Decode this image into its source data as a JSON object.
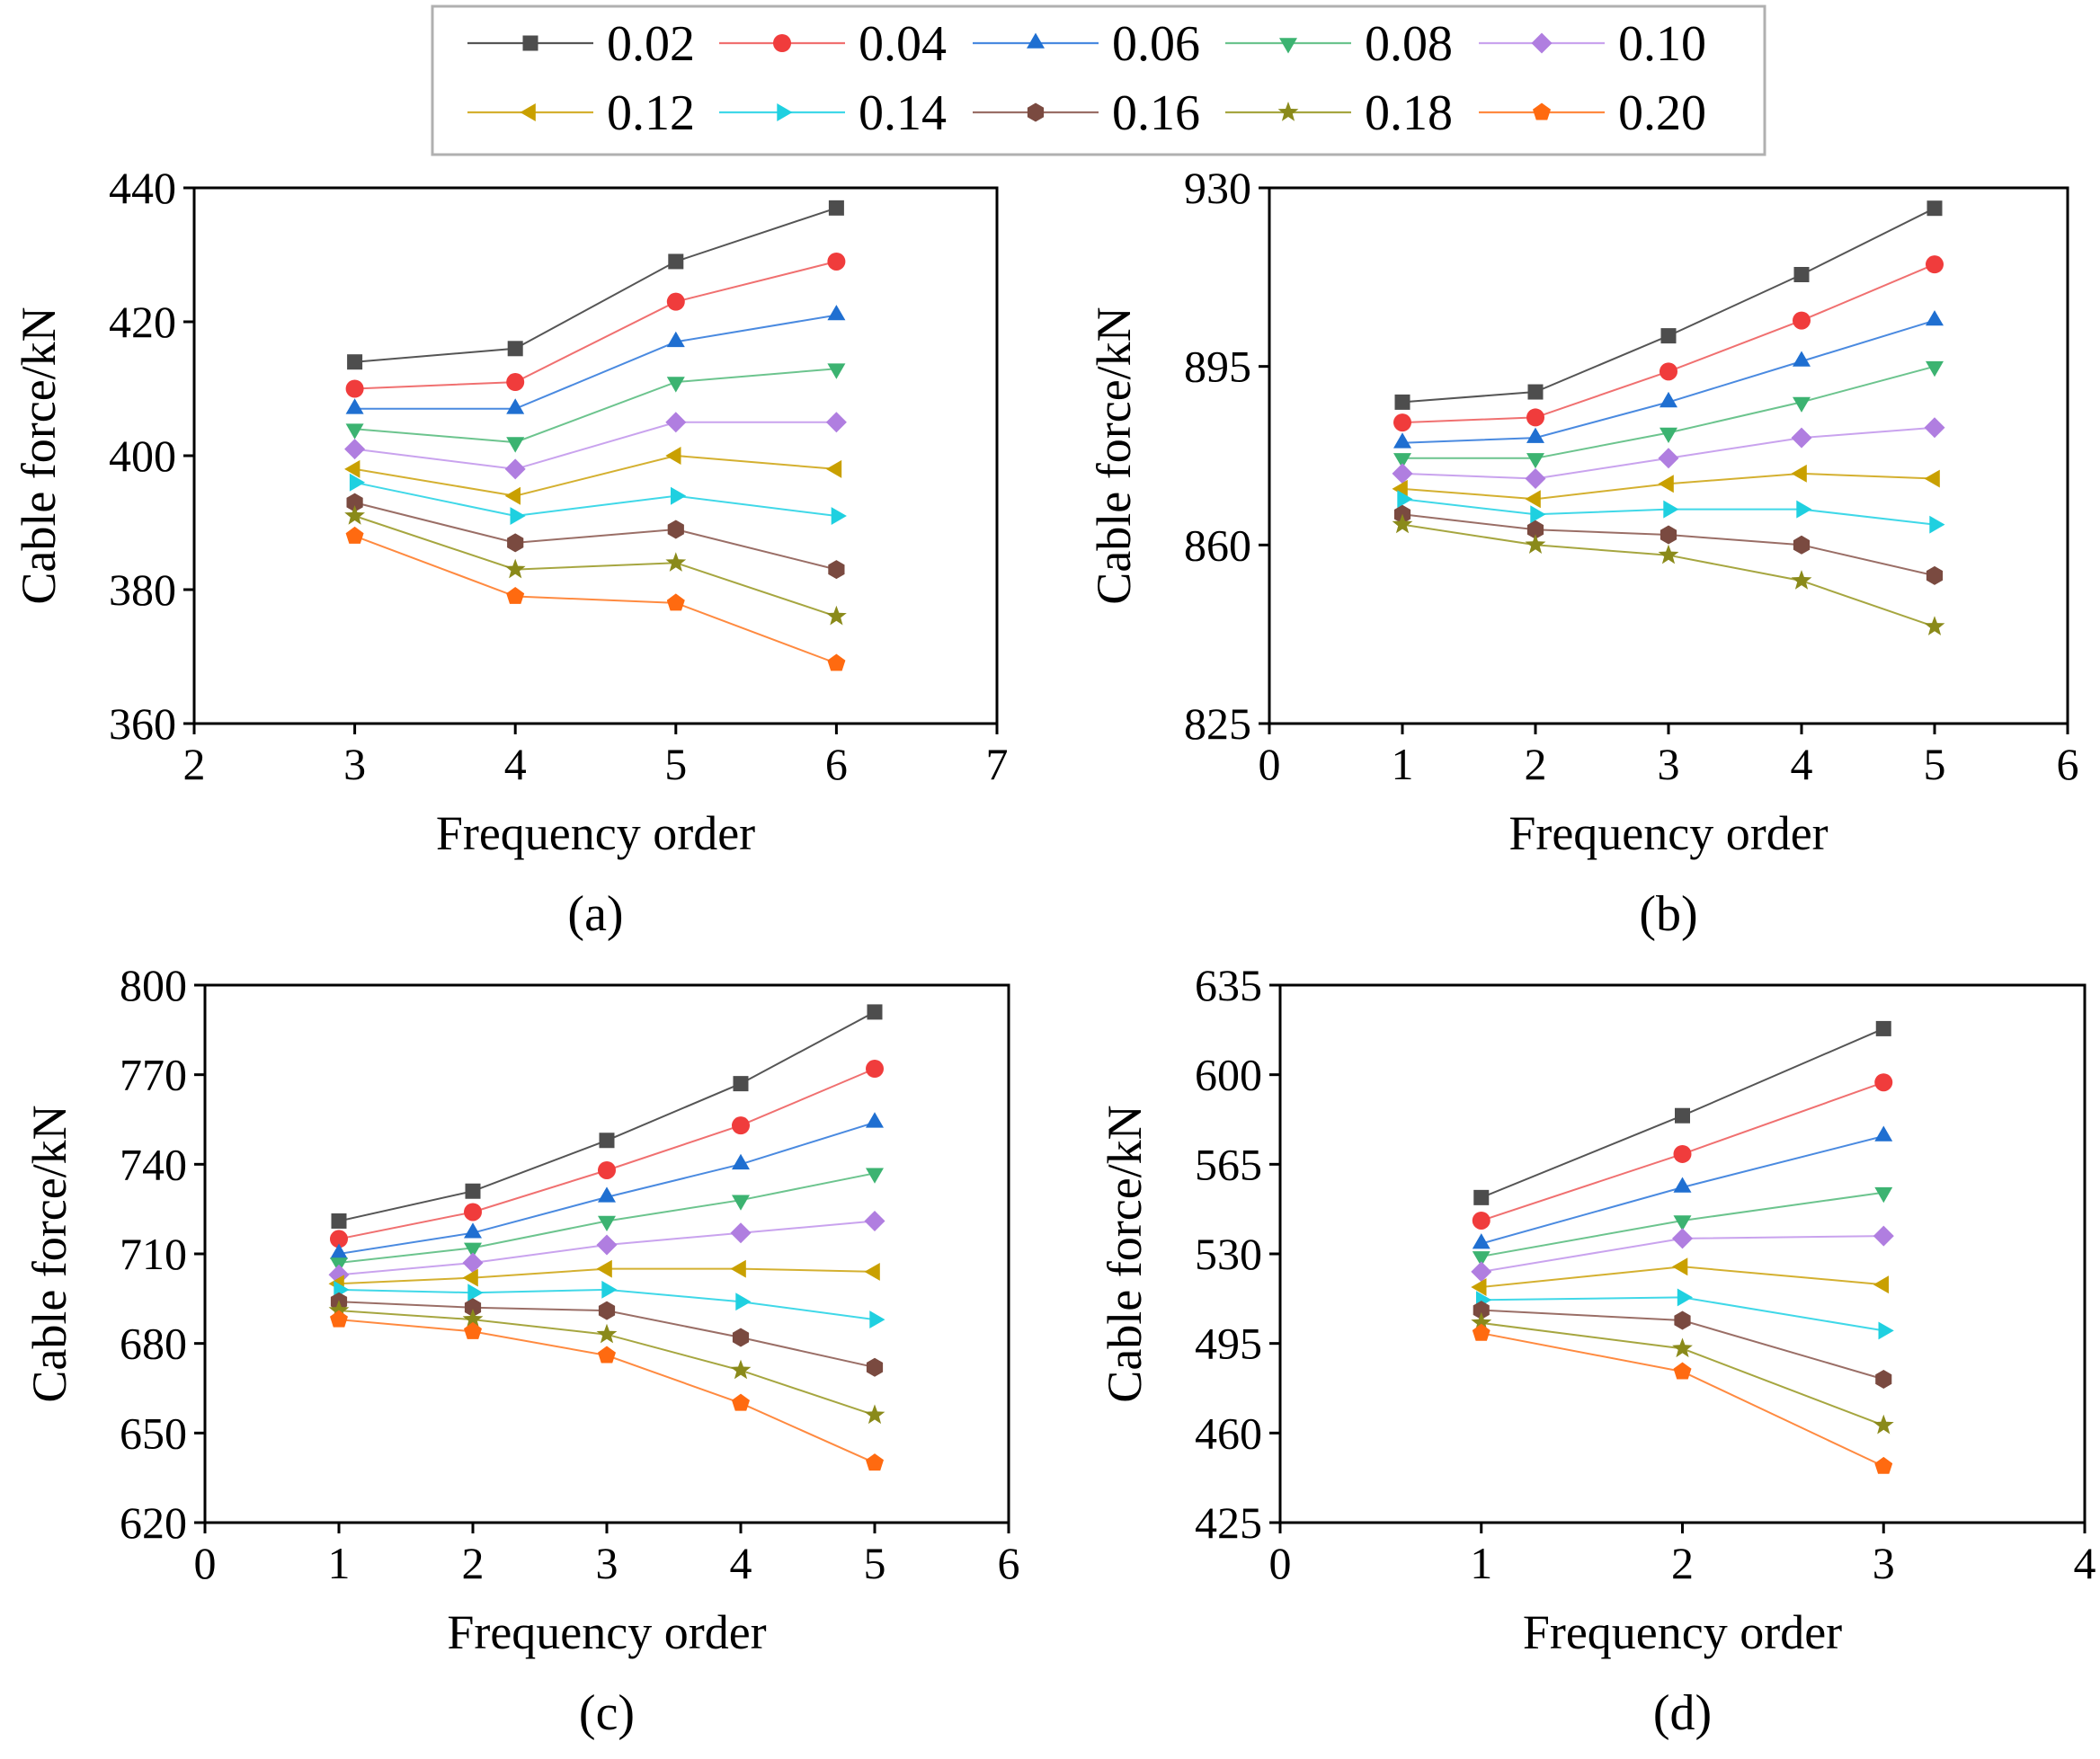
{
  "legend": {
    "entries": [
      "0.02",
      "0.04",
      "0.06",
      "0.08",
      "0.10",
      "0.12",
      "0.14",
      "0.16",
      "0.18",
      "0.20"
    ],
    "colors": [
      "#4d4d4d",
      "#f03c3c",
      "#1f6fd1",
      "#3cb371",
      "#b07ee0",
      "#c9a000",
      "#1fd0e0",
      "#7a4a40",
      "#8a8a1a",
      "#ff6a10"
    ],
    "markers": [
      "square",
      "circle",
      "triangle-up",
      "triangle-down",
      "diamond",
      "triangle-left",
      "triangle-right",
      "hexagon",
      "star",
      "pentagon"
    ],
    "line_colors": [
      "#555555",
      "#f07070",
      "#4a8ae0",
      "#6cc48e",
      "#c9a3ee",
      "#d4b030",
      "#40d8e8",
      "#9a6e66",
      "#a6a640",
      "#ff8a40"
    ]
  },
  "chart_data": [
    {
      "type": "line",
      "panel_label": "(a)",
      "xlabel": "Frequency order",
      "ylabel": "Cable force/kN",
      "xlim": [
        2,
        7
      ],
      "ylim": [
        360,
        440
      ],
      "xticks": [
        2,
        3,
        4,
        5,
        6,
        7
      ],
      "yticks": [
        360,
        380,
        400,
        420,
        440
      ],
      "x": [
        3,
        4,
        5,
        6
      ],
      "series": [
        {
          "name": "0.02",
          "values": [
            414,
            416,
            429,
            437
          ]
        },
        {
          "name": "0.04",
          "values": [
            410,
            411,
            423,
            429
          ]
        },
        {
          "name": "0.06",
          "values": [
            407,
            407,
            417,
            421
          ]
        },
        {
          "name": "0.08",
          "values": [
            404,
            402,
            411,
            413
          ]
        },
        {
          "name": "0.10",
          "values": [
            401,
            398,
            405,
            405
          ]
        },
        {
          "name": "0.12",
          "values": [
            398,
            394,
            400,
            398
          ]
        },
        {
          "name": "0.14",
          "values": [
            396,
            391,
            394,
            391
          ]
        },
        {
          "name": "0.16",
          "values": [
            393,
            387,
            389,
            383
          ]
        },
        {
          "name": "0.18",
          "values": [
            391,
            383,
            384,
            376
          ]
        },
        {
          "name": "0.20",
          "values": [
            388,
            379,
            378,
            369
          ]
        }
      ]
    },
    {
      "type": "line",
      "panel_label": "(b)",
      "xlabel": "Frequency order",
      "ylabel": "Cable force/kN",
      "xlim": [
        0,
        6
      ],
      "ylim": [
        825,
        930
      ],
      "xticks": [
        0,
        1,
        2,
        3,
        4,
        5,
        6
      ],
      "yticks": [
        825,
        860,
        895,
        930
      ],
      "x": [
        1,
        2,
        3,
        4,
        5
      ],
      "series": [
        {
          "name": "0.02",
          "values": [
            888,
            890,
            901,
            913,
            926
          ]
        },
        {
          "name": "0.04",
          "values": [
            884,
            885,
            894,
            904,
            915
          ]
        },
        {
          "name": "0.06",
          "values": [
            880,
            881,
            888,
            896,
            904
          ]
        },
        {
          "name": "0.08",
          "values": [
            877,
            877,
            882,
            888,
            895
          ]
        },
        {
          "name": "0.10",
          "values": [
            874,
            873,
            877,
            881,
            883
          ]
        },
        {
          "name": "0.12",
          "values": [
            871,
            869,
            872,
            874,
            873
          ]
        },
        {
          "name": "0.14",
          "values": [
            869,
            866,
            867,
            867,
            864
          ]
        },
        {
          "name": "0.16",
          "values": [
            866,
            863,
            862,
            860,
            854
          ]
        },
        {
          "name": "0.18",
          "values": [
            864,
            860,
            858,
            853,
            844
          ]
        }
      ]
    },
    {
      "type": "line",
      "panel_label": "(c)",
      "xlabel": "Frequency order",
      "ylabel": "Cable force/kN",
      "xlim": [
        0,
        6
      ],
      "ylim": [
        620,
        800
      ],
      "xticks": [
        0,
        1,
        2,
        3,
        4,
        5,
        6
      ],
      "yticks": [
        620,
        650,
        680,
        710,
        740,
        770,
        800
      ],
      "x": [
        1,
        2,
        3,
        4,
        5
      ],
      "series": [
        {
          "name": "0.02",
          "values": [
            721,
            731,
            748,
            767,
            791
          ]
        },
        {
          "name": "0.04",
          "values": [
            715,
            724,
            738,
            753,
            772
          ]
        },
        {
          "name": "0.06",
          "values": [
            710,
            717,
            729,
            740,
            754
          ]
        },
        {
          "name": "0.08",
          "values": [
            707,
            712,
            721,
            728,
            737
          ]
        },
        {
          "name": "0.10",
          "values": [
            703,
            707,
            713,
            717,
            721
          ]
        },
        {
          "name": "0.12",
          "values": [
            700,
            702,
            705,
            705,
            704
          ]
        },
        {
          "name": "0.14",
          "values": [
            698,
            697,
            698,
            694,
            688
          ]
        },
        {
          "name": "0.16",
          "values": [
            694,
            692,
            691,
            682,
            672
          ]
        },
        {
          "name": "0.18",
          "values": [
            691,
            688,
            683,
            671,
            656
          ]
        },
        {
          "name": "0.20",
          "values": [
            688,
            684,
            676,
            660,
            640
          ]
        }
      ]
    },
    {
      "type": "line",
      "panel_label": "(d)",
      "xlabel": "Frequency order",
      "ylabel": "Cable force/kN",
      "xlim": [
        0,
        4
      ],
      "ylim": [
        425,
        635
      ],
      "xticks": [
        0,
        1,
        2,
        3,
        4
      ],
      "yticks": [
        425,
        460,
        495,
        530,
        565,
        600,
        635
      ],
      "x": [
        1,
        2,
        3
      ],
      "series": [
        {
          "name": "0.02",
          "values": [
            552,
            584,
            618
          ]
        },
        {
          "name": "0.04",
          "values": [
            543,
            569,
            597
          ]
        },
        {
          "name": "0.06",
          "values": [
            534,
            556,
            576
          ]
        },
        {
          "name": "0.08",
          "values": [
            529,
            543,
            554
          ]
        },
        {
          "name": "0.10",
          "values": [
            523,
            536,
            537
          ]
        },
        {
          "name": "0.12",
          "values": [
            517,
            525,
            518
          ]
        },
        {
          "name": "0.14",
          "values": [
            512,
            513,
            500
          ]
        },
        {
          "name": "0.16",
          "values": [
            508,
            504,
            481
          ]
        },
        {
          "name": "0.18",
          "values": [
            503,
            493,
            463
          ]
        },
        {
          "name": "0.20",
          "values": [
            499,
            484,
            447
          ]
        }
      ]
    }
  ]
}
